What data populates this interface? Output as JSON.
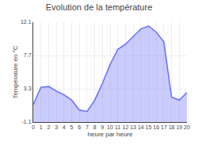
{
  "chart_data": {
    "type": "area",
    "title": "Evolution de la température",
    "xlabel": "heure par heure",
    "ylabel": "Température en °C",
    "x": [
      0,
      1,
      2,
      3,
      4,
      5,
      6,
      7,
      8,
      9,
      10,
      11,
      12,
      13,
      14,
      15,
      16,
      17,
      18,
      19,
      20
    ],
    "values": [
      1.2,
      3.5,
      3.6,
      3.0,
      2.5,
      1.8,
      0.5,
      0.3,
      1.8,
      4.0,
      6.5,
      8.5,
      9.2,
      10.2,
      11.2,
      11.6,
      10.8,
      9.5,
      2.2,
      1.8,
      2.8
    ],
    "xlim": [
      0,
      20
    ],
    "xticks": [
      0,
      1,
      2,
      3,
      4,
      5,
      6,
      7,
      8,
      9,
      10,
      11,
      12,
      13,
      14,
      15,
      16,
      17,
      18,
      19,
      20
    ],
    "ylim": [
      -1.1,
      12.1
    ],
    "yticks": [
      -1.1,
      3.3,
      7.7,
      12.1
    ],
    "grid": true
  }
}
